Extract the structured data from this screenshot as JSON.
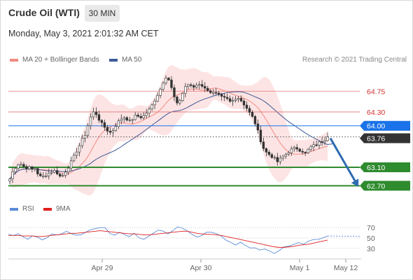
{
  "header": {
    "title": "Crude Oil (WTI)",
    "timeframe": "30 MIN",
    "datetime": "Monday, May 3, 2021 2:01:32 AM CET"
  },
  "legend": {
    "main": [
      {
        "label": "MA 20 + Bollinger Bands",
        "color": "#f28b82"
      },
      {
        "label": "MA 50",
        "color": "#3d5a98"
      }
    ],
    "credit": "Research © 2021 Trading Central",
    "indicator": [
      {
        "label": "RSI",
        "color": "#5b8dd9"
      },
      {
        "label": "9MA",
        "color": "#e02020"
      }
    ]
  },
  "colors": {
    "up_candle": "#ffffff",
    "down_candle": "#333333",
    "bollinger_fill": "#fde4e4",
    "ma20": "#f28b82",
    "ma50": "#3d5a98",
    "resistance": "#e57373",
    "support": "#2e8b2e",
    "current_price": "#333333",
    "forecast_arrow": "#2e6bb0",
    "pivot": "#1a73e8"
  },
  "chart_data": [
    {
      "type": "candlestick",
      "title": "Crude Oil (WTI)",
      "timeframe": "30 MIN",
      "ylim": [
        62.6,
        65.3
      ],
      "grid": false,
      "x_tick_labels": [
        "Apr 29",
        "Apr 30",
        "May 1",
        "May 12"
      ],
      "levels": [
        {
          "name": "resistance-2",
          "value": 64.75,
          "label": "64.75",
          "kind": "resistance"
        },
        {
          "name": "resistance-1",
          "value": 64.3,
          "label": "64.30",
          "kind": "resistance"
        },
        {
          "name": "pivot",
          "value": 64.0,
          "label": "64.00",
          "kind": "pivot"
        },
        {
          "name": "current-price",
          "value": 63.76,
          "label": "63.76",
          "kind": "last"
        },
        {
          "name": "support-1",
          "value": 63.1,
          "label": "63.10",
          "kind": "support"
        },
        {
          "name": "support-2",
          "value": 62.7,
          "label": "62.70",
          "kind": "support"
        }
      ],
      "forecast": {
        "from": 63.76,
        "to": 62.7,
        "direction": "down"
      },
      "close_path": [
        62.85,
        63.02,
        63.12,
        63.2,
        63.14,
        63.09,
        63.1,
        63.05,
        63.08,
        62.95,
        62.88,
        62.92,
        62.96,
        63.0,
        63.03,
        62.98,
        62.9,
        62.93,
        63.05,
        63.15,
        63.28,
        63.42,
        63.55,
        63.7,
        63.82,
        64.05,
        64.25,
        64.32,
        64.18,
        64.06,
        63.98,
        63.9,
        63.85,
        63.92,
        64.05,
        64.12,
        64.2,
        64.16,
        64.1,
        64.15,
        64.22,
        64.2,
        64.18,
        64.25,
        64.32,
        64.42,
        64.55,
        64.68,
        64.82,
        65.0,
        65.1,
        64.9,
        64.68,
        64.45,
        64.55,
        64.72,
        64.88,
        64.9,
        64.82,
        64.86,
        64.92,
        64.88,
        64.8,
        64.78,
        64.72,
        64.7,
        64.68,
        64.62,
        64.6,
        64.58,
        64.52,
        64.55,
        64.62,
        64.6,
        64.5,
        64.42,
        64.3,
        64.2,
        64.05,
        63.85,
        63.62,
        63.45,
        63.4,
        63.35,
        63.3,
        63.22,
        63.28,
        63.35,
        63.4,
        63.46,
        63.5,
        63.52,
        63.48,
        63.45,
        63.4,
        63.5,
        63.55,
        63.58,
        63.62,
        63.66,
        63.7,
        63.76
      ]
    },
    {
      "type": "line",
      "name": "RSI panel",
      "ylim": [
        15,
        85
      ],
      "y_ticks": [
        70,
        50,
        30
      ],
      "series": [
        {
          "name": "RSI",
          "values": [
            58,
            54,
            60,
            52,
            48,
            55,
            50,
            46,
            52,
            57,
            55,
            60,
            64,
            60,
            56,
            58,
            62,
            66,
            68,
            70,
            68,
            60,
            56,
            63,
            58,
            54,
            60,
            52,
            48,
            55,
            60,
            66,
            62,
            58,
            64,
            70,
            68,
            64,
            56,
            52,
            56,
            60,
            62,
            58,
            54,
            46,
            40,
            38,
            42,
            36,
            32,
            30,
            26,
            30,
            24,
            22,
            26,
            32,
            36,
            38,
            42,
            40,
            44,
            46,
            48,
            52,
            54
          ]
        },
        {
          "name": "9MA",
          "values": [
            55,
            55,
            55,
            54,
            54,
            54,
            53,
            53,
            54,
            55,
            56,
            57,
            58,
            59,
            59,
            60,
            61,
            62,
            63,
            64,
            63,
            62,
            61,
            60,
            59,
            58,
            58,
            57,
            56,
            56,
            57,
            58,
            59,
            60,
            61,
            62,
            63,
            63,
            61,
            59,
            58,
            57,
            57,
            56,
            55,
            53,
            51,
            49,
            47,
            45,
            43,
            41,
            39,
            37,
            35,
            33,
            32,
            32,
            33,
            34,
            36,
            37,
            38,
            40,
            42,
            44,
            46
          ]
        }
      ]
    }
  ]
}
